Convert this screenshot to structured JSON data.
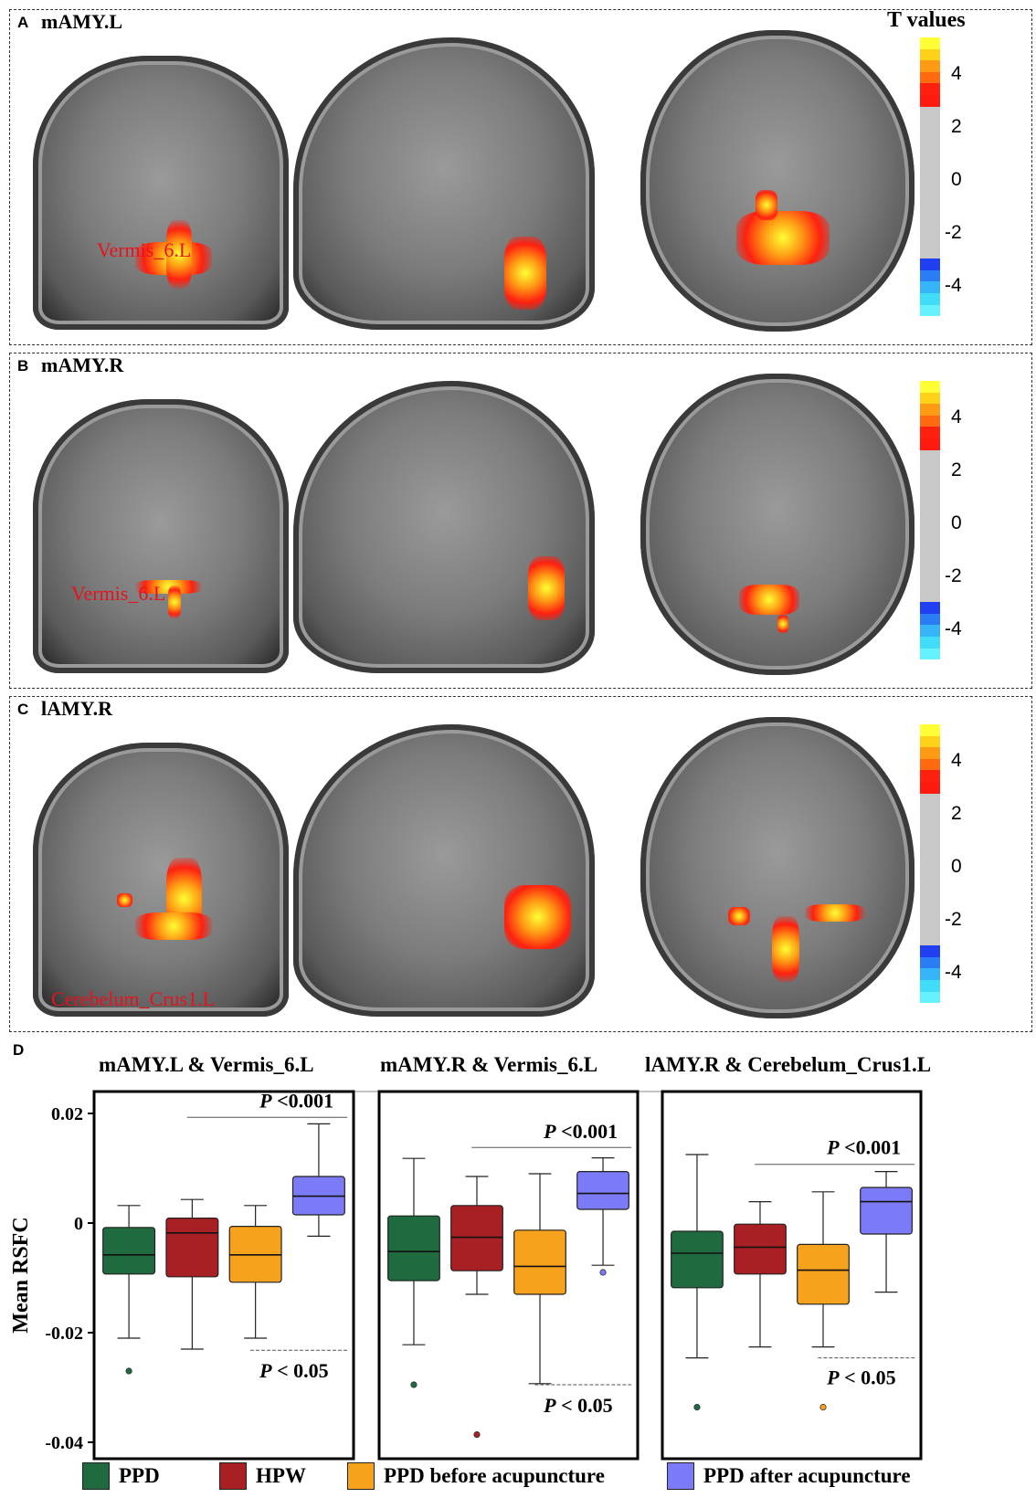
{
  "panels": [
    {
      "letter": "A",
      "title": "mAMY.L",
      "region_label": "Vermis_6.L",
      "colorbar": {
        "title": "T values",
        "ticks": [
          "4",
          "2",
          "0",
          "-2",
          "-4"
        ]
      }
    },
    {
      "letter": "B",
      "title": "mAMY.R",
      "region_label": "Vermis_6.L",
      "colorbar": {
        "title": "",
        "ticks": [
          "4",
          "2",
          "0",
          "-2",
          "-4"
        ]
      }
    },
    {
      "letter": "C",
      "title": "lAMY.R",
      "region_label": "Cerebelum_Crus1.L",
      "colorbar": {
        "title": "",
        "ticks": [
          "4",
          "2",
          "0",
          "-2",
          "-4"
        ]
      }
    }
  ],
  "panel_d": {
    "letter": "D"
  },
  "colors": {
    "PPD": "#1f6b3f",
    "HPW": "#a81f24",
    "PPD before acupuncture": "#f7a21c",
    "PPD after acupuncture": "#7b7bf7",
    "activation": "#e8121d",
    "colorbar_hot": [
      "#ffff33",
      "#ffd21a",
      "#ff9a14",
      "#ff6a10",
      "#ff2010"
    ],
    "colorbar_cold": [
      "#1f3ff0",
      "#2a7df4",
      "#35b4f7",
      "#40dcf9",
      "#66f1ff"
    ]
  },
  "chart_data": [
    {
      "type": "box",
      "title": "mAMY.L & Vermis_6.L",
      "ylabel": "Mean RSFC",
      "ylim": [
        -0.043,
        0.024
      ],
      "yticks": [
        "0.02",
        "0",
        "-0.02",
        "-0.04"
      ],
      "categories": [
        "PPD",
        "HPW",
        "PPD before acupuncture",
        "PPD after acupuncture"
      ],
      "boxes": [
        {
          "group": "PPD",
          "whisker_low": -0.021,
          "q1": -0.0093,
          "median": -0.0058,
          "q3": -0.0008,
          "whisker_high": 0.0032,
          "outliers": [
            -0.027
          ]
        },
        {
          "group": "HPW",
          "whisker_low": -0.023,
          "q1": -0.0098,
          "median": -0.0018,
          "q3": 0.0009,
          "whisker_high": 0.0043,
          "outliers": []
        },
        {
          "group": "PPD before acupuncture",
          "whisker_low": -0.021,
          "q1": -0.0108,
          "median": -0.0058,
          "q3": -0.0006,
          "whisker_high": 0.0032,
          "outliers": []
        },
        {
          "group": "PPD after acupuncture",
          "whisker_low": -0.0024,
          "q1": 0.0015,
          "median": 0.0049,
          "q3": 0.0085,
          "whisker_high": 0.0181,
          "outliers": []
        }
      ],
      "annotations": [
        {
          "text_p": "P",
          "text_rest": " <0.001",
          "from": 1,
          "to": 3,
          "y": 0.0193,
          "label_y": 0.0211
        },
        {
          "text_p": "P",
          "text_rest": " < 0.05",
          "from": 2,
          "to": 3,
          "y": -0.0232,
          "label_y": -0.0282
        }
      ]
    },
    {
      "type": "box",
      "title": "mAMY.R & Vermis_6.L",
      "ylim": [
        -0.043,
        0.024
      ],
      "categories": [
        "PPD",
        "HPW",
        "PPD before acupuncture",
        "PPD after acupuncture"
      ],
      "boxes": [
        {
          "group": "PPD",
          "whisker_low": -0.0222,
          "q1": -0.0105,
          "median": -0.0052,
          "q3": 0.0013,
          "whisker_high": 0.0118,
          "outliers": [
            -0.0295
          ]
        },
        {
          "group": "HPW",
          "whisker_low": -0.013,
          "q1": -0.0087,
          "median": -0.0026,
          "q3": 0.0032,
          "whisker_high": 0.0085,
          "outliers": [
            -0.0386
          ]
        },
        {
          "group": "PPD before acupuncture",
          "whisker_low": -0.0293,
          "q1": -0.013,
          "median": -0.0079,
          "q3": -0.0013,
          "whisker_high": 0.009,
          "outliers": []
        },
        {
          "group": "PPD after acupuncture",
          "whisker_low": -0.0077,
          "q1": 0.0025,
          "median": 0.0054,
          "q3": 0.0094,
          "whisker_high": 0.0119,
          "outliers": [
            -0.009
          ]
        }
      ],
      "annotations": [
        {
          "text_p": "P",
          "text_rest": " <0.001",
          "from": 1,
          "to": 3,
          "y": 0.0138,
          "label_y": 0.0155
        },
        {
          "text_p": "P",
          "text_rest": " < 0.05",
          "from": 2,
          "to": 3,
          "y": -0.0295,
          "label_y": -0.0345
        }
      ]
    },
    {
      "type": "box",
      "title": "lAMY.R & Cerebelum_Crus1.L",
      "ylim": [
        -0.043,
        0.024
      ],
      "categories": [
        "PPD",
        "HPW",
        "PPD before acupuncture",
        "PPD after acupuncture"
      ],
      "boxes": [
        {
          "group": "PPD",
          "whisker_low": -0.0246,
          "q1": -0.0118,
          "median": -0.0055,
          "q3": -0.0015,
          "whisker_high": 0.0125,
          "outliers": [
            -0.0336
          ]
        },
        {
          "group": "HPW",
          "whisker_low": -0.0226,
          "q1": -0.0093,
          "median": -0.0044,
          "q3": -0.0002,
          "whisker_high": 0.0039,
          "outliers": []
        },
        {
          "group": "PPD before acupuncture",
          "whisker_low": -0.0226,
          "q1": -0.0148,
          "median": -0.0086,
          "q3": -0.0039,
          "whisker_high": 0.0057,
          "outliers": [
            -0.0336
          ]
        },
        {
          "group": "PPD after acupuncture",
          "whisker_low": -0.0126,
          "q1": -0.002,
          "median": 0.0039,
          "q3": 0.0065,
          "whisker_high": 0.0094,
          "outliers": []
        }
      ],
      "annotations": [
        {
          "text_p": "P",
          "text_rest": " <0.001",
          "from": 1,
          "to": 3,
          "y": 0.0107,
          "label_y": 0.0126
        },
        {
          "text_p": "P",
          "text_rest": " < 0.05",
          "from": 2,
          "to": 3,
          "y": -0.0246,
          "label_y": -0.0294
        }
      ]
    }
  ],
  "legend": [
    {
      "label": "PPD",
      "color": "#1f6b3f"
    },
    {
      "label": "HPW",
      "color": "#a81f24"
    },
    {
      "label": "PPD before acupuncture",
      "color": "#f7a21c"
    },
    {
      "label": "PPD after acupuncture",
      "color": "#7b7bf7"
    }
  ]
}
